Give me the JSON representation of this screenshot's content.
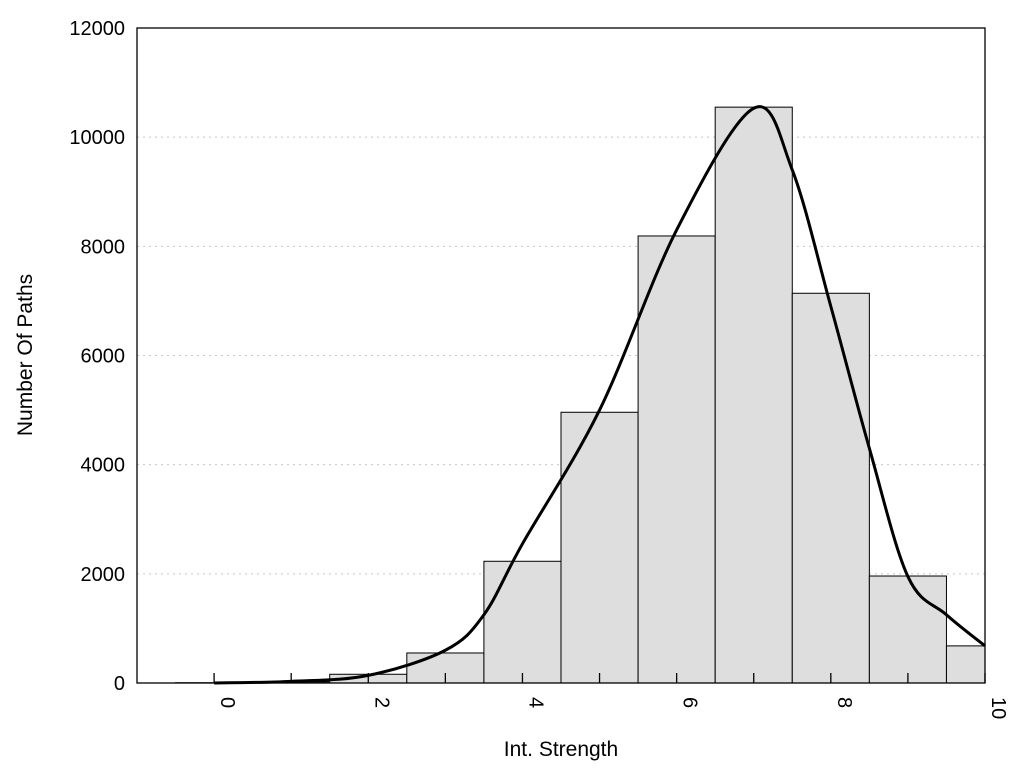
{
  "chart_data": {
    "type": "bar",
    "title": "",
    "xlabel": "Int. Strength",
    "ylabel": "Number Of Paths",
    "xlim": [
      -1,
      10
    ],
    "ylim": [
      0,
      12000
    ],
    "xticks": [
      0,
      2,
      4,
      6,
      8,
      10
    ],
    "yticks": [
      0,
      2000,
      4000,
      6000,
      8000,
      10000,
      12000
    ],
    "grid": "horizontal dotted",
    "bar_color": "#dedede",
    "bar_width": 1,
    "categories": [
      0,
      1,
      2,
      3,
      4,
      5,
      6,
      7,
      8,
      9,
      10
    ],
    "values": [
      5,
      20,
      160,
      550,
      2230,
      4960,
      8190,
      10550,
      7140,
      1960,
      680
    ],
    "curve": {
      "type": "line",
      "color": "#000000",
      "x": [
        0,
        1,
        2,
        3,
        3.5,
        4,
        5,
        6,
        7,
        7.5,
        8,
        8.5,
        9,
        9.5,
        10
      ],
      "y": [
        0,
        30,
        140,
        600,
        1250,
        2550,
        5000,
        8300,
        10530,
        9400,
        6900,
        4300,
        1950,
        1250,
        680
      ]
    }
  }
}
